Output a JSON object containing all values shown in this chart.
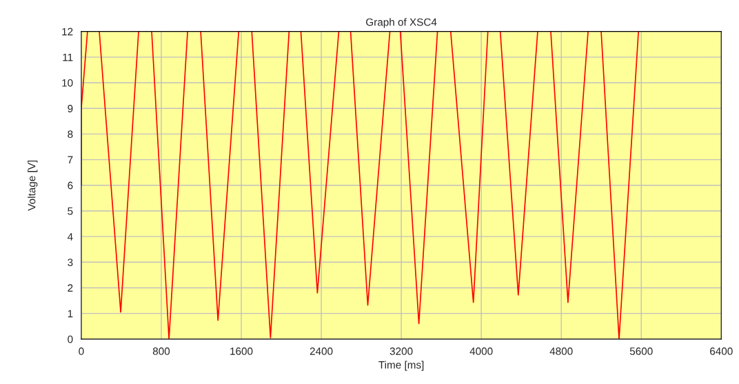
{
  "chart_data": {
    "type": "line",
    "title": "Graph of XSC4",
    "xlabel": "Time [ms]",
    "ylabel": "Voltage [V]",
    "xlim": [
      0,
      6400
    ],
    "xticks": [
      0,
      800,
      1600,
      2400,
      3200,
      4000,
      4800,
      5600,
      6400
    ],
    "ylim": [
      0,
      12
    ],
    "yticks": [
      0,
      1,
      2,
      3,
      4,
      5,
      6,
      7,
      8,
      9,
      10,
      11,
      12
    ],
    "grid": true,
    "legend": false,
    "marker": "none",
    "line_style": "solid",
    "series": [
      {
        "color": "#ff0000",
        "x": [
          0,
          0,
          62,
          120,
          180,
          394,
          573,
          640,
          704,
          877,
          1063,
          1130,
          1194,
          1367,
          1574,
          1640,
          1705,
          1892,
          2078,
          2140,
          2196,
          2361,
          2575,
          2630,
          2693,
          2865,
          3086,
          3140,
          3190,
          3376,
          3562,
          3630,
          3694,
          3921,
          4066,
          4130,
          4190,
          4370,
          4564,
          4630,
          4695,
          4867,
          5068,
          5130,
          5199,
          5378,
          5572
        ],
        "values": [
          6,
          9,
          12,
          null,
          12,
          1.05,
          12,
          null,
          12,
          0,
          12,
          null,
          12,
          0.73,
          12,
          null,
          12,
          0.05,
          12,
          null,
          12,
          1.8,
          12,
          null,
          12,
          1.32,
          12,
          null,
          12,
          0.6,
          12,
          null,
          12,
          1.43,
          12,
          null,
          12,
          1.72,
          12,
          null,
          12,
          1.43,
          12,
          null,
          12,
          0,
          12
        ]
      }
    ]
  }
}
